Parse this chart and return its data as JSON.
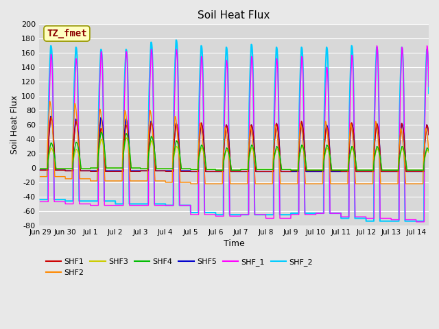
{
  "title": "Soil Heat Flux",
  "xlabel": "Time",
  "ylabel": "Soil Heat Flux",
  "ylim": [
    -80,
    200
  ],
  "xlim": [
    -0.05,
    15.5
  ],
  "tick_labels": [
    "Jun 29",
    "Jun 30",
    "Jul 1",
    "Jul 2",
    "Jul 3",
    "Jul 4",
    "Jul 5",
    "Jul 6",
    "Jul 7",
    "Jul 8",
    "Jul 9",
    "Jul 10",
    "Jul 11",
    "Jul 12",
    "Jul 13",
    "Jul 14"
  ],
  "tick_positions": [
    0,
    1,
    2,
    3,
    4,
    5,
    6,
    7,
    8,
    9,
    10,
    11,
    12,
    13,
    14,
    15
  ],
  "series": {
    "SHF1": {
      "color": "#cc0000",
      "lw": 1.0
    },
    "SHF2": {
      "color": "#ff8800",
      "lw": 1.0
    },
    "SHF3": {
      "color": "#cccc00",
      "lw": 1.0
    },
    "SHF4": {
      "color": "#00bb00",
      "lw": 1.0
    },
    "SHF5": {
      "color": "#0000cc",
      "lw": 1.2
    },
    "SHF_1": {
      "color": "#ff00ff",
      "lw": 1.0
    },
    "SHF_2": {
      "color": "#00ccff",
      "lw": 1.5
    }
  },
  "annotation": {
    "text": "TZ_fmet",
    "fontsize": 10,
    "color": "#8b0000",
    "bg": "#ffffc0",
    "border_color": "#999900"
  },
  "fig_bg": "#e8e8e8",
  "plot_bg": "#d8d8d8",
  "yticks": [
    -80,
    -60,
    -40,
    -20,
    0,
    20,
    40,
    60,
    80,
    100,
    120,
    140,
    160,
    180,
    200
  ]
}
